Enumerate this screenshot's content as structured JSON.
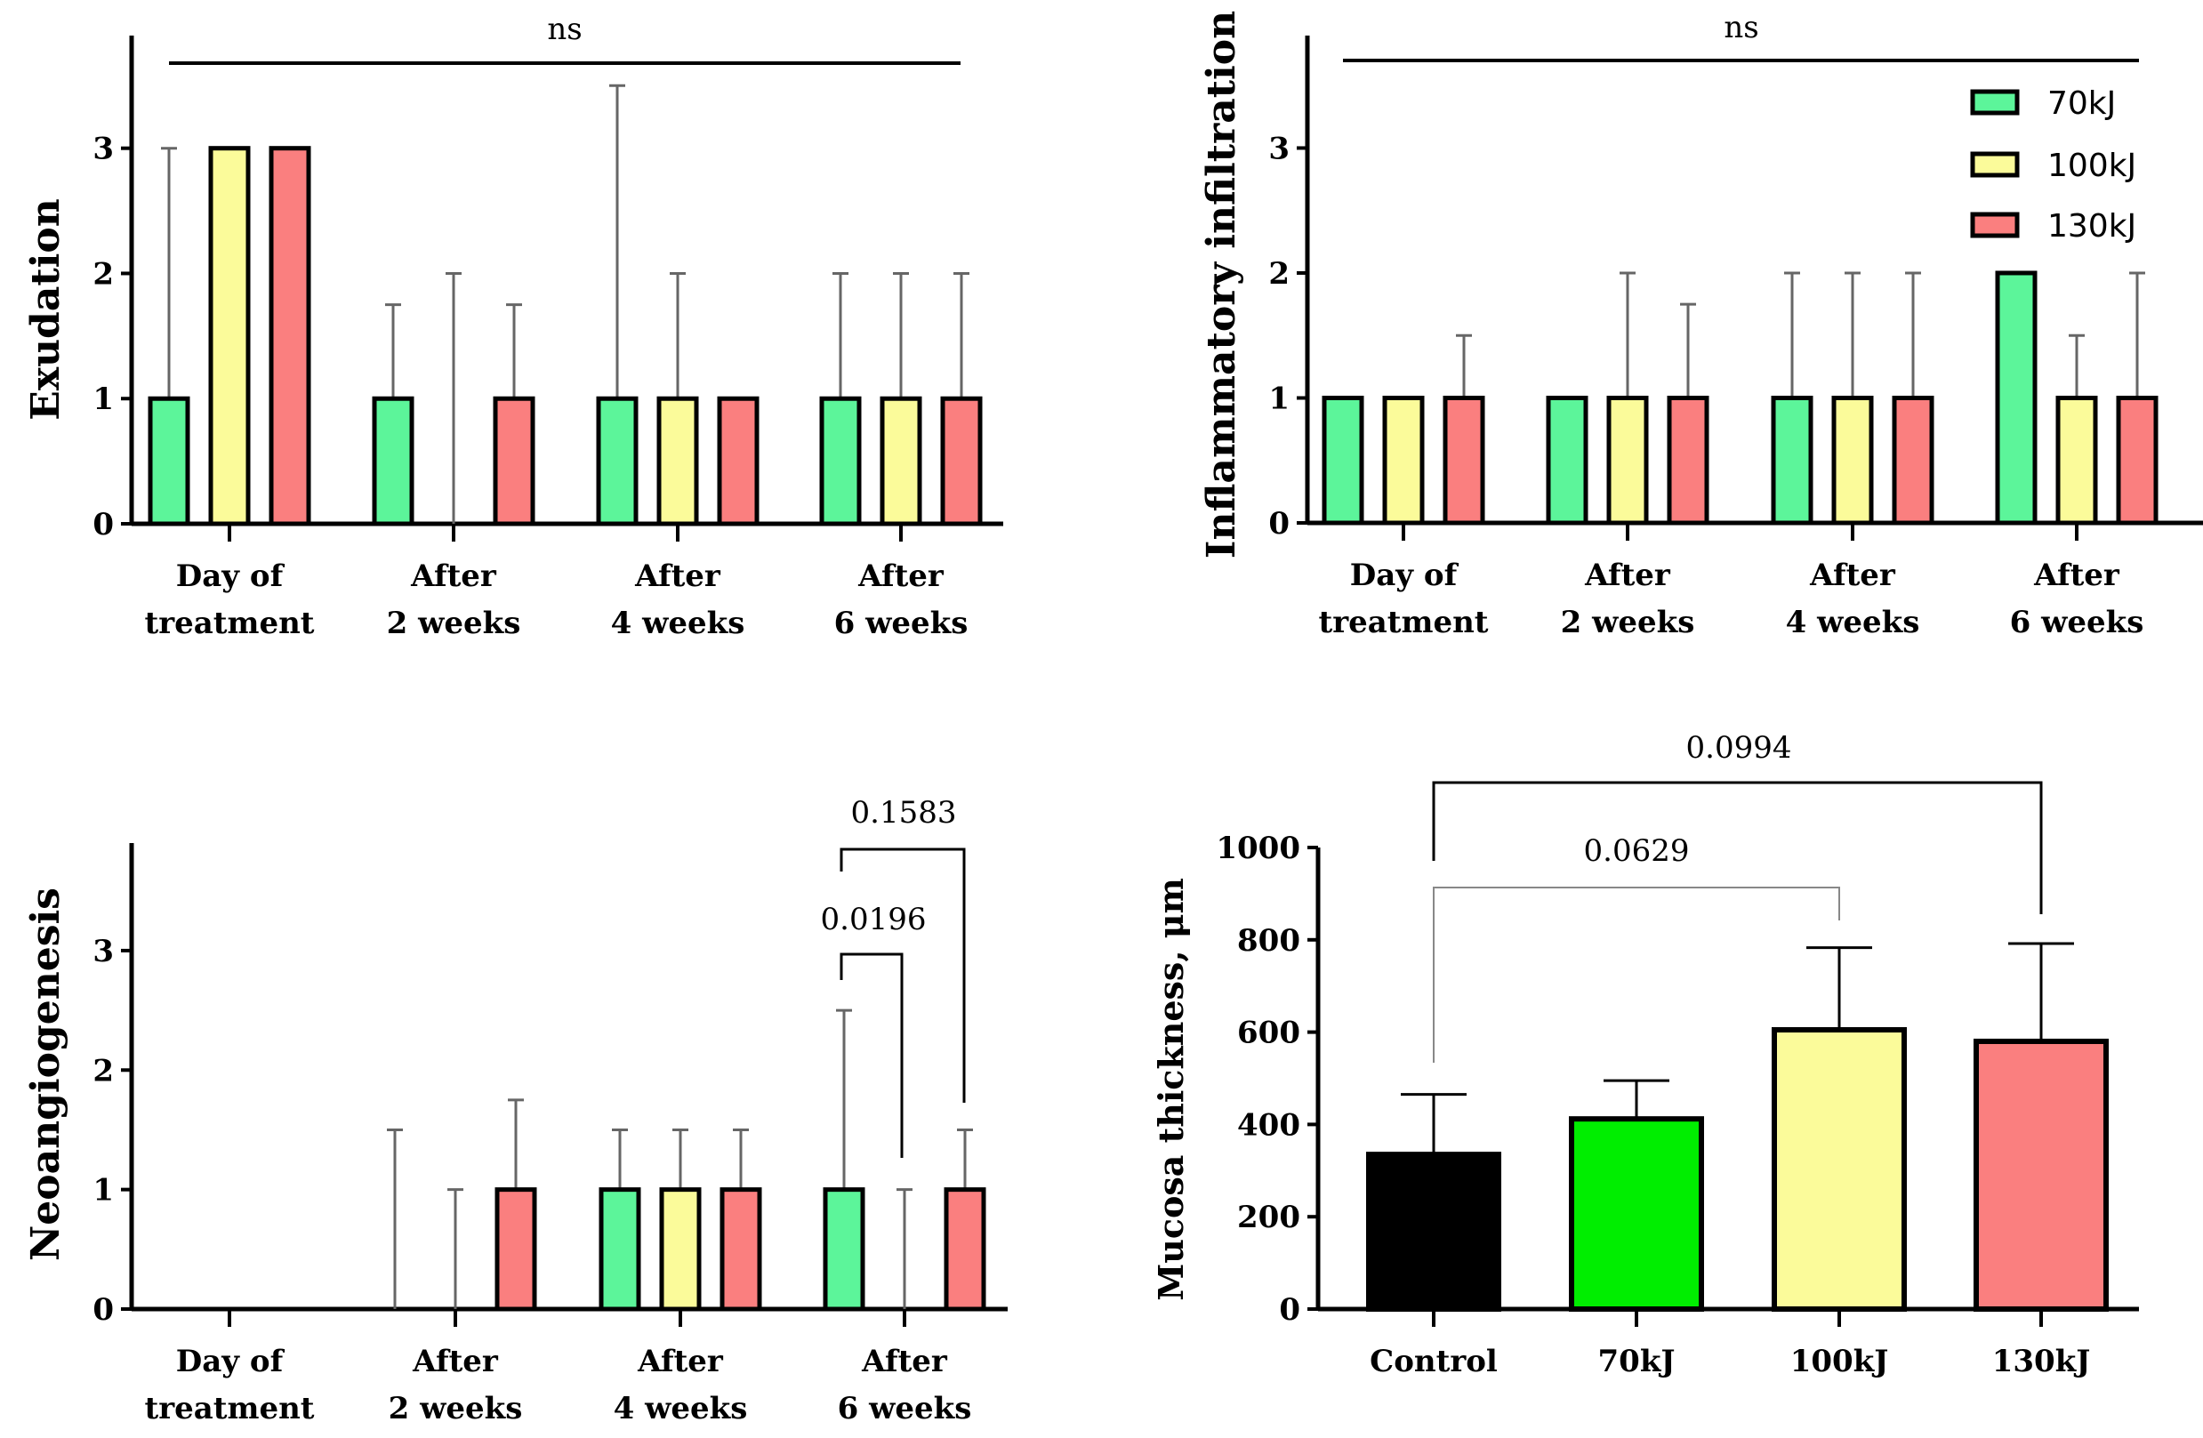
{
  "colors": {
    "g70": "#5cf59a",
    "g100": "#fbfb9a",
    "g130": "#fa7f7f",
    "control": "#000000",
    "bright70": "#00ee00"
  },
  "legend": {
    "items": [
      "70kJ",
      "100kJ",
      "130kJ"
    ]
  },
  "chart_data": [
    {
      "type": "bar",
      "ylabel": "Exudation",
      "yticks": [
        "0",
        "1",
        "2",
        "3"
      ],
      "ylim": [
        0,
        3.9
      ],
      "categories": [
        [
          "Day of",
          "treatment"
        ],
        [
          "After",
          "2 weeks"
        ],
        [
          "After",
          "4 weeks"
        ],
        [
          "After",
          "6 weeks"
        ]
      ],
      "series": [
        {
          "name": "70kJ",
          "values": [
            1,
            1,
            1,
            1
          ],
          "errors": [
            3,
            1.75,
            3.5,
            2
          ]
        },
        {
          "name": "100kJ",
          "values": [
            3,
            0,
            1,
            1
          ],
          "errors": [
            null,
            2,
            2,
            2
          ]
        },
        {
          "name": "130kJ",
          "values": [
            3,
            1,
            1,
            1
          ],
          "errors": [
            null,
            1.75,
            null,
            2
          ]
        }
      ],
      "annotations": [
        {
          "text": "ns",
          "type": "span"
        }
      ]
    },
    {
      "type": "bar",
      "ylabel": "Inflammatory infiltration",
      "yticks": [
        "0",
        "1",
        "2",
        "3"
      ],
      "ylim": [
        0,
        3.9
      ],
      "categories": [
        [
          "Day of",
          "treatment"
        ],
        [
          "After",
          "2 weeks"
        ],
        [
          "After",
          "4 weeks"
        ],
        [
          "After",
          "6 weeks"
        ]
      ],
      "series": [
        {
          "name": "70kJ",
          "values": [
            1,
            1,
            1,
            2
          ],
          "errors": [
            null,
            null,
            2,
            null
          ]
        },
        {
          "name": "100kJ",
          "values": [
            1,
            1,
            1,
            1
          ],
          "errors": [
            null,
            2,
            2,
            1.5
          ]
        },
        {
          "name": "130kJ",
          "values": [
            1,
            1,
            1,
            1
          ],
          "errors": [
            1.5,
            1.75,
            2,
            2
          ]
        }
      ],
      "annotations": [
        {
          "text": "ns",
          "type": "span"
        }
      ],
      "legend": "top-right"
    },
    {
      "type": "bar",
      "ylabel": "Neoangiogenesis",
      "yticks": [
        "0",
        "1",
        "2",
        "3"
      ],
      "ylim": [
        0,
        3.9
      ],
      "categories": [
        [
          "Day of",
          "treatment"
        ],
        [
          "After",
          "2 weeks"
        ],
        [
          "After",
          "4 weeks"
        ],
        [
          "After",
          "6 weeks"
        ]
      ],
      "series": [
        {
          "name": "70kJ",
          "values": [
            0,
            0,
            1,
            1
          ],
          "errors": [
            null,
            1.5,
            1.5,
            2.5
          ]
        },
        {
          "name": "100kJ",
          "values": [
            0,
            0,
            1,
            0
          ],
          "errors": [
            null,
            1,
            1.5,
            1
          ]
        },
        {
          "name": "130kJ",
          "values": [
            0,
            1,
            1,
            1
          ],
          "errors": [
            null,
            1.75,
            1.5,
            1.5
          ]
        }
      ],
      "annotations": [
        {
          "text": "0.0196",
          "from": "6w-70kJ",
          "to": "6w-100kJ"
        },
        {
          "text": "0.1583",
          "from": "6w-70kJ",
          "to": "6w-130kJ"
        }
      ]
    },
    {
      "type": "bar",
      "ylabel": "Mucosa thickness, μm",
      "yticks": [
        "0",
        "200",
        "400",
        "600",
        "800",
        "1000"
      ],
      "ylim": [
        0,
        1000
      ],
      "categories": [
        "Control",
        "70kJ",
        "100kJ",
        "130kJ"
      ],
      "values": [
        335,
        412,
        605,
        580
      ],
      "errors": [
        465,
        495,
        783,
        792
      ],
      "annotations": [
        {
          "text": "0.0629",
          "from": "Control",
          "to": "100kJ"
        },
        {
          "text": "0.0994",
          "from": "Control",
          "to": "130kJ"
        }
      ]
    }
  ]
}
